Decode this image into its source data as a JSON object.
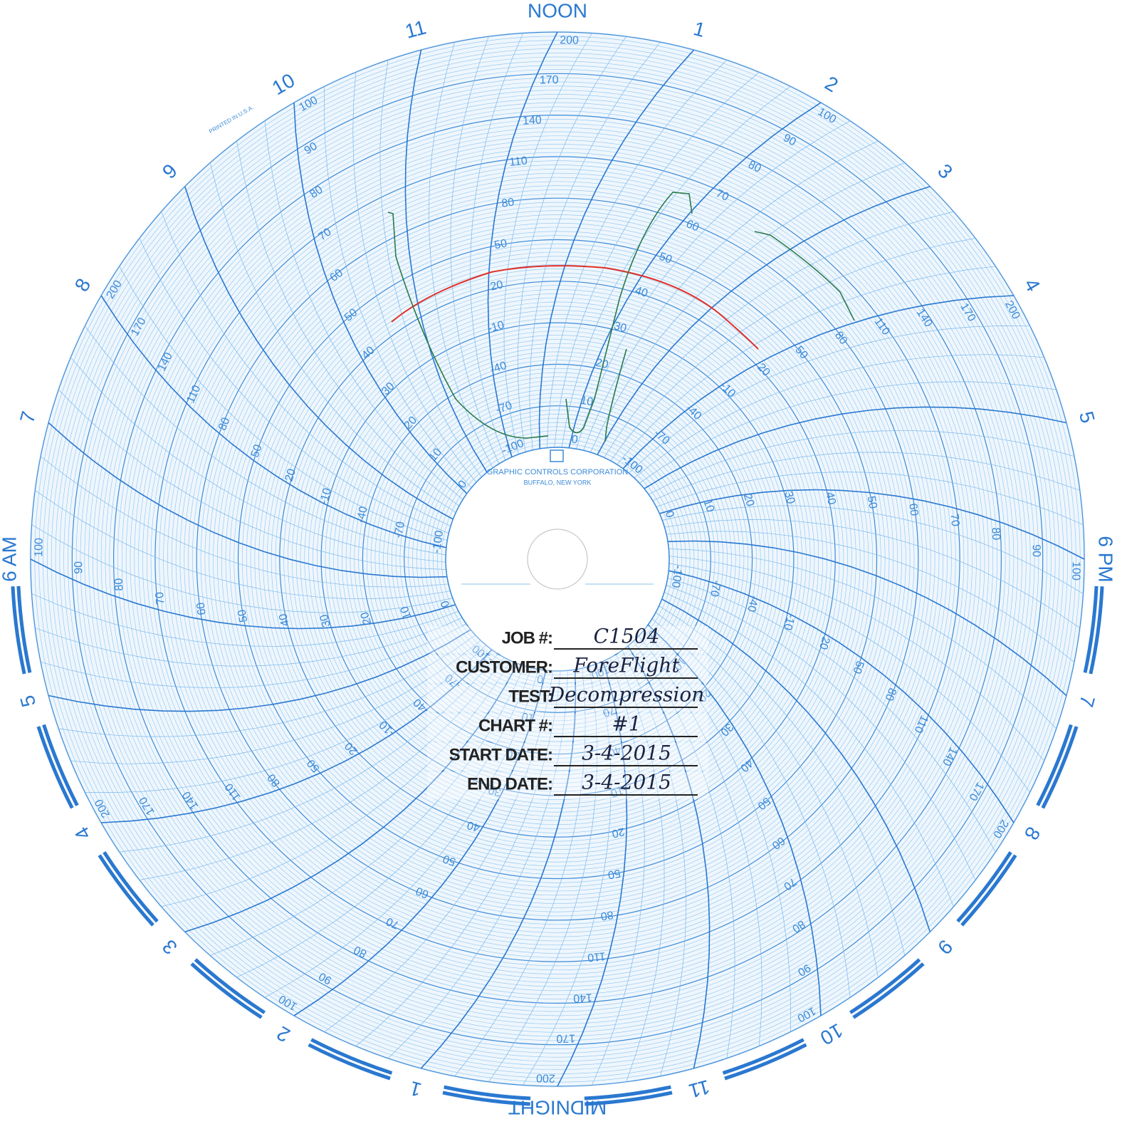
{
  "hour_labels": [
    "NOON",
    "1",
    "2",
    "3",
    "4",
    "5",
    "6 PM",
    "7",
    "8",
    "9",
    "10",
    "11",
    "MIDNIGHT",
    "1",
    "2",
    "3",
    "4",
    "5",
    "6 AM",
    "7",
    "8",
    "9",
    "10",
    "11"
  ],
  "scale_a": [
    0,
    10,
    20,
    30,
    40,
    50,
    60,
    70,
    80,
    90,
    100
  ],
  "scale_b": [
    -100,
    -70,
    -40,
    -10,
    20,
    50,
    80,
    110,
    140,
    170,
    200
  ],
  "hub": {
    "maker": "GRAPHIC CONTROLS CORPORATION",
    "city": "BUFFALO, NEW YORK"
  },
  "imprint": "PRINTED IN U.S.A.",
  "stamp": [
    {
      "label": "JOB #:",
      "entry": "C1504"
    },
    {
      "label": "CUSTOMER:",
      "entry": "ForeFlight"
    },
    {
      "label": "TEST:",
      "entry": "Decompression"
    },
    {
      "label": "CHART #:",
      "entry": "#1"
    },
    {
      "label": "START DATE:",
      "entry": "3-4-2015"
    },
    {
      "label": "END DATE:",
      "entry": "3-4-2015"
    }
  ]
}
